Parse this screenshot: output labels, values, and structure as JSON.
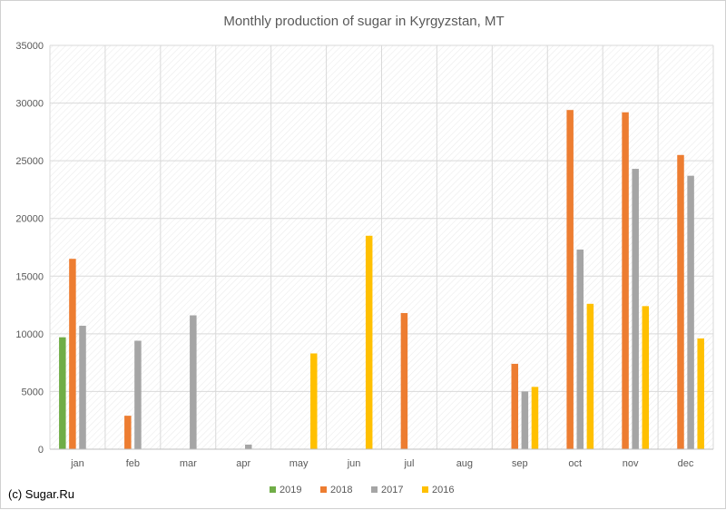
{
  "chart_data": {
    "type": "bar",
    "title": "Monthly production of sugar in Kyrgyzstan, MT",
    "xlabel": "",
    "ylabel": "",
    "ylim": [
      0,
      35000
    ],
    "yticks": [
      0,
      5000,
      10000,
      15000,
      20000,
      25000,
      30000,
      35000
    ],
    "grid": true,
    "legend_position": "bottom",
    "categories": [
      "jan",
      "feb",
      "mar",
      "apr",
      "may",
      "jun",
      "jul",
      "aug",
      "sep",
      "oct",
      "nov",
      "dec"
    ],
    "series": [
      {
        "name": "2019",
        "color": "#70AD47",
        "values": [
          9700,
          0,
          0,
          0,
          0,
          0,
          0,
          0,
          0,
          0,
          0,
          0
        ]
      },
      {
        "name": "2018",
        "color": "#ED7D31",
        "values": [
          16500,
          2900,
          0,
          0,
          0,
          0,
          11800,
          0,
          7400,
          29400,
          29200,
          25500
        ]
      },
      {
        "name": "2017",
        "color": "#A5A5A5",
        "values": [
          10700,
          9400,
          11600,
          400,
          0,
          0,
          0,
          0,
          5000,
          17300,
          24300,
          23700
        ]
      },
      {
        "name": "2016",
        "color": "#FFC000",
        "values": [
          0,
          0,
          0,
          0,
          8300,
          18500,
          0,
          0,
          5400,
          12600,
          12400,
          9600
        ]
      }
    ]
  },
  "credit": {
    "text": "(c) Sugar.Ru"
  }
}
